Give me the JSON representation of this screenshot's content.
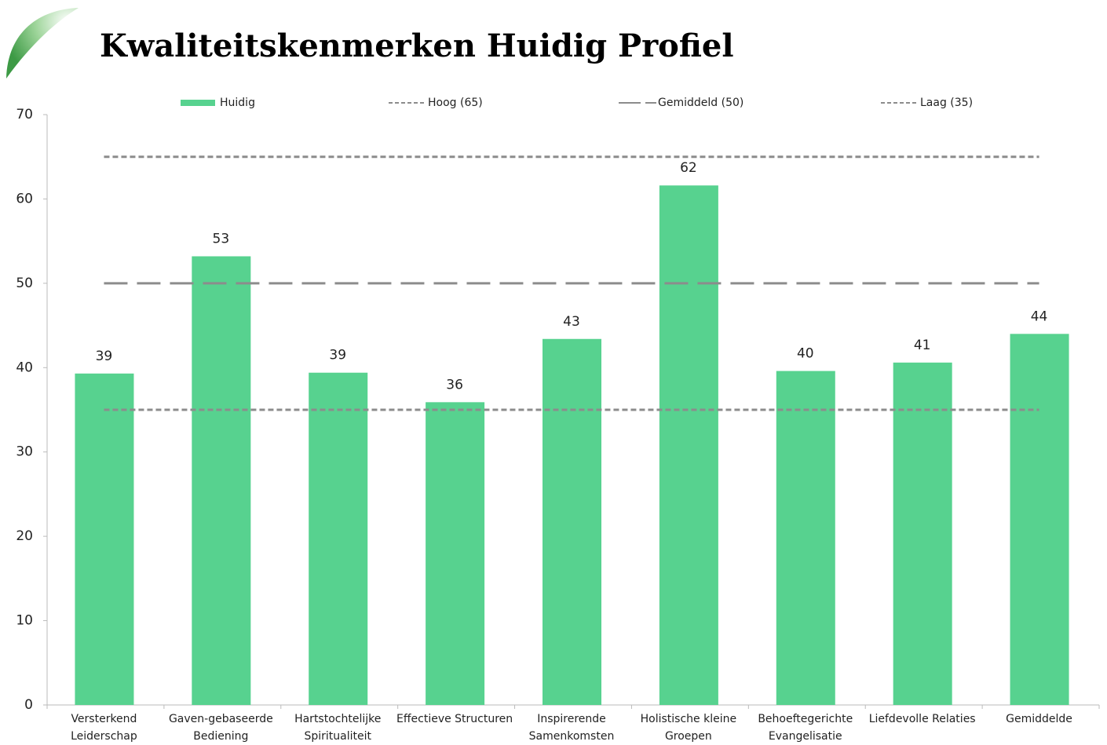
{
  "chart_data": {
    "type": "bar",
    "title": "Kwaliteitskenmerken Huidig Profiel",
    "categories": [
      "Versterkend Leiderschap",
      "Gaven-gebaseerde Bediening",
      "Hartstochtelijke Spiritualiteit",
      "Effectieve Structuren",
      "Inspirerende Samenkomsten",
      "Holistische kleine Groepen",
      "Behoeftegerichte Evangelisatie",
      "Liefdevolle Relaties",
      "Gemiddelde"
    ],
    "series": [
      {
        "name": "Huidig",
        "type": "bar",
        "color": "#57d28f",
        "values": [
          39.3,
          53.2,
          39.4,
          35.9,
          43.4,
          61.6,
          39.6,
          40.6,
          44.0
        ],
        "value_labels": [
          "39",
          "53",
          "39",
          "36",
          "43",
          "62",
          "40",
          "41",
          "44"
        ]
      },
      {
        "name": "Hoog (65)",
        "type": "line",
        "color": "#8c8c8c",
        "dash": "short",
        "values": [
          65,
          65,
          65,
          65,
          65,
          65,
          65,
          65,
          65
        ]
      },
      {
        "name": "Gemiddeld (50)",
        "type": "line",
        "color": "#8c8c8c",
        "dash": "long",
        "values": [
          50,
          50,
          50,
          50,
          50,
          50,
          50,
          50,
          50
        ]
      },
      {
        "name": "Laag (35)",
        "type": "line",
        "color": "#8c8c8c",
        "dash": "short",
        "values": [
          35,
          35,
          35,
          35,
          35,
          35,
          35,
          35,
          35
        ]
      }
    ],
    "ylim": [
      0,
      70
    ],
    "yticks": [
      0,
      10,
      20,
      30,
      40,
      50,
      60,
      70
    ],
    "grid": false,
    "legend": "top"
  }
}
